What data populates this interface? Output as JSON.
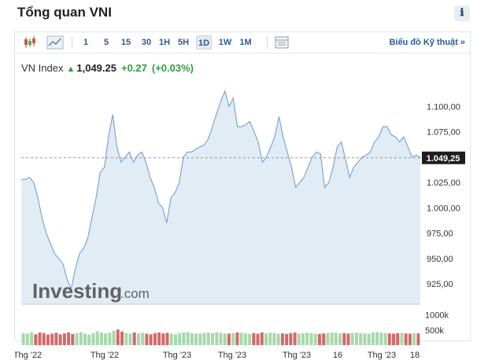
{
  "header": {
    "title": "Tổng quan VNI",
    "info_icon": "ℹ"
  },
  "toolbar": {
    "chart_type_icons": [
      "candlestick-icon",
      "area-chart-icon",
      "table-icon"
    ],
    "periods": [
      {
        "label": "1",
        "active": false
      },
      {
        "label": "5",
        "active": false
      },
      {
        "label": "15",
        "active": false
      },
      {
        "label": "30",
        "active": false
      },
      {
        "label": "1H",
        "active": false
      },
      {
        "label": "5H",
        "active": false
      },
      {
        "label": "1D",
        "active": true
      },
      {
        "label": "1W",
        "active": false
      },
      {
        "label": "1M",
        "active": false
      }
    ],
    "tech_link": "Biểu đồ Kỹ thuật »"
  },
  "quote": {
    "name": "VN Index",
    "last": "1,049.25",
    "change": "+0.27",
    "change_pct": "(+0.03%)"
  },
  "watermark": {
    "brand": "Investing",
    "suffix": ".com"
  },
  "chart_data": {
    "type": "area",
    "price_axis_labels": [
      "1.100,00",
      "1.075,00",
      "1.049,25",
      "1.025,00",
      "1.000,00",
      "975,00",
      "950,00",
      "925,00"
    ],
    "price_ticks": [
      1100,
      1075,
      1025,
      1000,
      975,
      950,
      925
    ],
    "current_value": 1049.25,
    "current_label": "1.049,25",
    "volume_axis_labels": [
      "1000k",
      "500k"
    ],
    "x_tick_labels": [
      "Thg '22",
      "Thg '22",
      "Thg '23",
      "Thg '23",
      "Thg '23",
      "16",
      "Thg '23",
      "18"
    ],
    "price_series": [
      1028,
      1028,
      1030,
      1025,
      1010,
      990,
      975,
      965,
      955,
      950,
      945,
      930,
      920,
      940,
      955,
      960,
      970,
      990,
      1010,
      1035,
      1040,
      1070,
      1092,
      1060,
      1045,
      1050,
      1055,
      1045,
      1052,
      1055,
      1045,
      1030,
      1020,
      1005,
      1000,
      985,
      1010,
      1015,
      1025,
      1050,
      1055,
      1055,
      1058,
      1060,
      1062,
      1068,
      1080,
      1093,
      1105,
      1115,
      1100,
      1108,
      1080,
      1080,
      1082,
      1085,
      1075,
      1065,
      1045,
      1050,
      1060,
      1070,
      1090,
      1070,
      1055,
      1040,
      1020,
      1025,
      1030,
      1040,
      1050,
      1055,
      1053,
      1020,
      1025,
      1040,
      1060,
      1065,
      1048,
      1030,
      1040,
      1045,
      1050,
      1052,
      1055,
      1065,
      1070,
      1080,
      1080,
      1072,
      1070,
      1065,
      1070,
      1060,
      1050,
      1052,
      1049.25
    ],
    "volume_series": [
      400,
      380,
      430,
      360,
      420,
      400,
      350,
      380,
      410,
      360,
      390,
      420,
      370,
      400,
      430,
      380,
      350,
      400,
      460,
      420,
      390,
      410,
      480,
      520,
      450,
      400,
      380,
      420,
      390,
      410,
      380,
      360,
      400,
      420,
      390,
      410,
      380,
      360,
      400,
      420,
      430,
      400,
      380,
      390,
      410,
      420,
      400,
      430,
      410,
      390,
      380,
      400,
      420,
      410,
      390,
      370,
      400,
      380,
      420,
      390,
      410,
      400,
      380,
      390,
      370,
      400,
      420,
      380,
      390,
      410,
      400,
      380,
      370,
      390,
      400,
      420,
      410,
      390,
      400,
      380,
      410,
      420,
      400,
      390,
      380,
      420,
      430,
      410,
      400,
      390,
      380,
      400,
      410,
      390,
      380,
      400,
      390
    ],
    "volume_ylim": [
      0,
      1200
    ],
    "ylim": [
      905,
      1125
    ]
  },
  "colors": {
    "line": "#7fa7cc",
    "area": "#dfeaf4",
    "up_bar": "#a8d8ad",
    "down_bar": "#d16a6a",
    "link": "#2a5b95",
    "change": "#2e9c3e"
  }
}
